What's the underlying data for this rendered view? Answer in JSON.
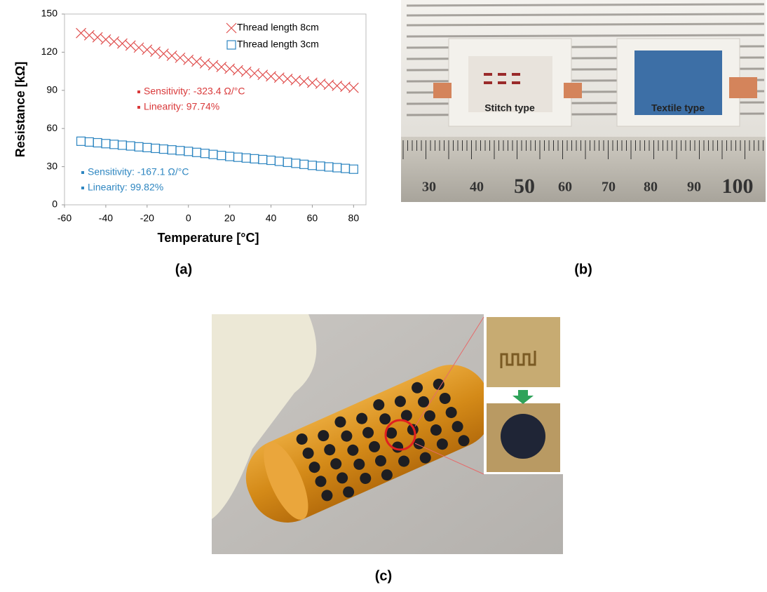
{
  "chart_data": {
    "type": "scatter",
    "x_label": "Temperature [°C]",
    "y_label": "Resistance [kΩ]",
    "xlim": [
      -60,
      86
    ],
    "xticks": [
      -60,
      -40,
      -20,
      0,
      20,
      40,
      60,
      80
    ],
    "ylim": [
      0,
      150
    ],
    "yticks": [
      0,
      30,
      60,
      90,
      120,
      150
    ],
    "x": [
      -52,
      -48,
      -44,
      -40,
      -36,
      -32,
      -28,
      -24,
      -20,
      -16,
      -12,
      -8,
      -4,
      0,
      4,
      8,
      12,
      16,
      20,
      24,
      28,
      32,
      36,
      40,
      44,
      48,
      52,
      56,
      60,
      64,
      68,
      72,
      76,
      80
    ],
    "series": [
      {
        "name": "Thread length 8cm",
        "color": "#e0504f",
        "marker": "x",
        "values": [
          135,
          133.3,
          131.7,
          130,
          128.4,
          126.8,
          125.2,
          123.6,
          122,
          120.4,
          118.8,
          117.2,
          115.6,
          114,
          112.6,
          111.2,
          109.8,
          108.4,
          107,
          105.8,
          104.6,
          103.4,
          102.2,
          101,
          100,
          99,
          98,
          97,
          96,
          95.2,
          94.4,
          93.6,
          92.8,
          92
        ]
      },
      {
        "name": "Thread length 3cm",
        "color": "#2e86c1",
        "marker": "square",
        "values": [
          50,
          49.4,
          48.8,
          48.1,
          47.5,
          46.9,
          46.3,
          45.6,
          45,
          44.4,
          43.8,
          43.2,
          42.6,
          42,
          41.2,
          40.4,
          39.6,
          38.8,
          38,
          37.4,
          36.8,
          36.2,
          35.6,
          35,
          34.2,
          33.4,
          32.6,
          31.8,
          31,
          30.4,
          29.8,
          29.2,
          28.6,
          28
        ]
      }
    ],
    "annotations": [
      {
        "text": "Sensitivity: -323.4 Ω/°C",
        "color": "#d9393a"
      },
      {
        "text": "Linearity: 97.74%",
        "color": "#d9393a"
      },
      {
        "text": "Sensitivity: -167.1 Ω/°C",
        "color": "#2e86c1"
      },
      {
        "text": "Linearity: 99.82%",
        "color": "#2e86c1"
      }
    ]
  },
  "panels": {
    "a": "(a)",
    "b": "(b)",
    "c": "(c)"
  },
  "photo_b": {
    "labels": [
      "Stitch type",
      "Textile type"
    ],
    "ruler": [
      "30",
      "40",
      "50",
      "60",
      "70",
      "80",
      "90",
      "100"
    ]
  }
}
